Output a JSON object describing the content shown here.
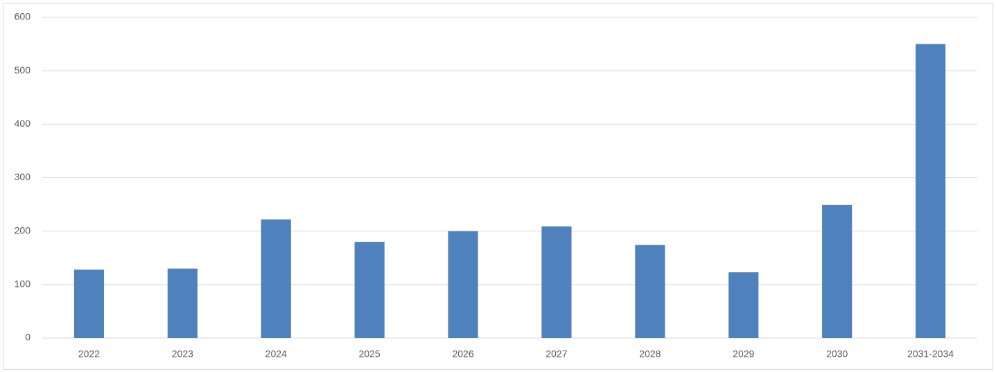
{
  "chart_data": {
    "type": "bar",
    "categories": [
      "2022",
      "2023",
      "2024",
      "2025",
      "2026",
      "2027",
      "2028",
      "2029",
      "2030",
      "2031-2034"
    ],
    "values": [
      128,
      130,
      222,
      180,
      200,
      209,
      174,
      123,
      249,
      550
    ],
    "color": "#4f81bd",
    "ylim": [
      0,
      600
    ],
    "yticks": [
      0,
      100,
      200,
      300,
      400,
      500,
      600
    ],
    "grid": true
  }
}
